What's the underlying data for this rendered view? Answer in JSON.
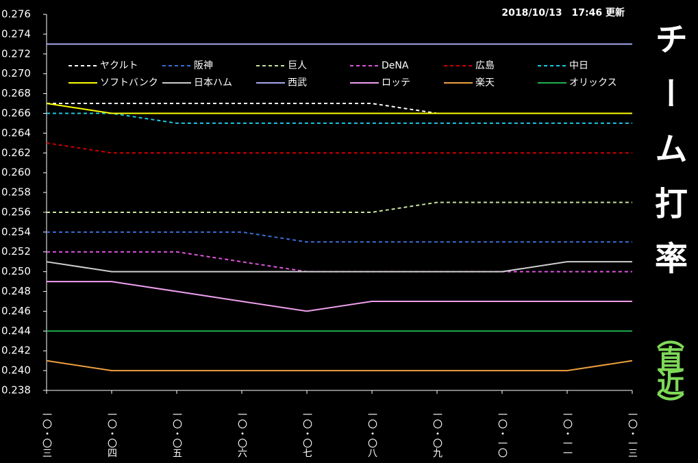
{
  "chart_data": {
    "type": "line",
    "title": "チーム打率",
    "subtitle": "（直近）",
    "updated": "2018/10/13　17:46 更新",
    "categories": [
      "一〇・〇三",
      "一〇・〇四",
      "一〇・〇五",
      "一〇・〇六",
      "一〇・〇七",
      "一〇・〇八",
      "一〇・〇九",
      "一〇・一〇",
      "一〇・一一",
      "一〇・一三"
    ],
    "ylim": [
      0.238,
      0.276
    ],
    "yticks": [
      0.238,
      {
        "value": 0.24,
        "label": "0.240"
      },
      0.242,
      0.244,
      0.246,
      0.248,
      {
        "value": 0.25,
        "label": "0.250"
      },
      0.252,
      0.254,
      0.256,
      0.258,
      {
        "value": 0.26,
        "label": "0.260"
      },
      0.262,
      0.264,
      0.266,
      0.268,
      {
        "value": 0.27,
        "label": "0.270"
      },
      0.272,
      0.274,
      0.276
    ],
    "series": [
      {
        "name": "ヤクルト",
        "color": "#ffffff",
        "dashed": true,
        "values": [
          0.267,
          0.267,
          0.267,
          0.267,
          0.267,
          0.267,
          0.266,
          0.266,
          0.266,
          0.266
        ]
      },
      {
        "name": "阪神",
        "color": "#3a6fd8",
        "dashed": true,
        "values": [
          0.254,
          0.254,
          0.254,
          0.254,
          0.253,
          0.253,
          0.253,
          0.253,
          0.253,
          0.253
        ]
      },
      {
        "name": "巨人",
        "color": "#c8e6a0",
        "dashed": true,
        "values": [
          0.256,
          0.256,
          0.256,
          0.256,
          0.256,
          0.256,
          0.257,
          0.257,
          0.257,
          0.257
        ]
      },
      {
        "name": "DeNA",
        "color": "#e055e0",
        "dashed": true,
        "values": [
          0.252,
          0.252,
          0.252,
          0.251,
          0.25,
          0.25,
          0.25,
          0.25,
          0.25,
          0.25
        ]
      },
      {
        "name": "広島",
        "color": "#d00000",
        "dashed": true,
        "values": [
          0.263,
          0.262,
          0.262,
          0.262,
          0.262,
          0.262,
          0.262,
          0.262,
          0.262,
          0.262
        ]
      },
      {
        "name": "中日",
        "color": "#1ec8e6",
        "dashed": true,
        "values": [
          0.266,
          0.266,
          0.265,
          0.265,
          0.265,
          0.265,
          0.265,
          0.265,
          0.265,
          0.265
        ]
      },
      {
        "name": "ソフトバンク",
        "color": "#ffff00",
        "dashed": false,
        "values": [
          0.267,
          0.266,
          0.266,
          0.266,
          0.266,
          0.266,
          0.266,
          0.266,
          0.266,
          0.266
        ]
      },
      {
        "name": "日本ハム",
        "color": "#d0d0d0",
        "dashed": false,
        "values": [
          0.251,
          0.25,
          0.25,
          0.25,
          0.25,
          0.25,
          0.25,
          0.25,
          0.251,
          0.251
        ]
      },
      {
        "name": "西武",
        "color": "#a8a8f0",
        "dashed": false,
        "values": [
          0.273,
          0.273,
          0.273,
          0.273,
          0.273,
          0.273,
          0.273,
          0.273,
          0.273,
          0.273
        ]
      },
      {
        "name": "ロッテ",
        "color": "#f0a0f0",
        "dashed": false,
        "values": [
          0.249,
          0.249,
          0.248,
          0.247,
          0.246,
          0.247,
          0.247,
          0.247,
          0.247,
          0.247
        ]
      },
      {
        "name": "楽天",
        "color": "#f0a040",
        "dashed": false,
        "values": [
          0.241,
          0.24,
          0.24,
          0.24,
          0.24,
          0.24,
          0.24,
          0.24,
          0.24,
          0.241
        ]
      },
      {
        "name": "オリックス",
        "color": "#20b050",
        "dashed": false,
        "values": [
          0.244,
          0.244,
          0.244,
          0.244,
          0.244,
          0.244,
          0.244,
          0.244,
          0.244,
          0.244
        ]
      }
    ]
  }
}
